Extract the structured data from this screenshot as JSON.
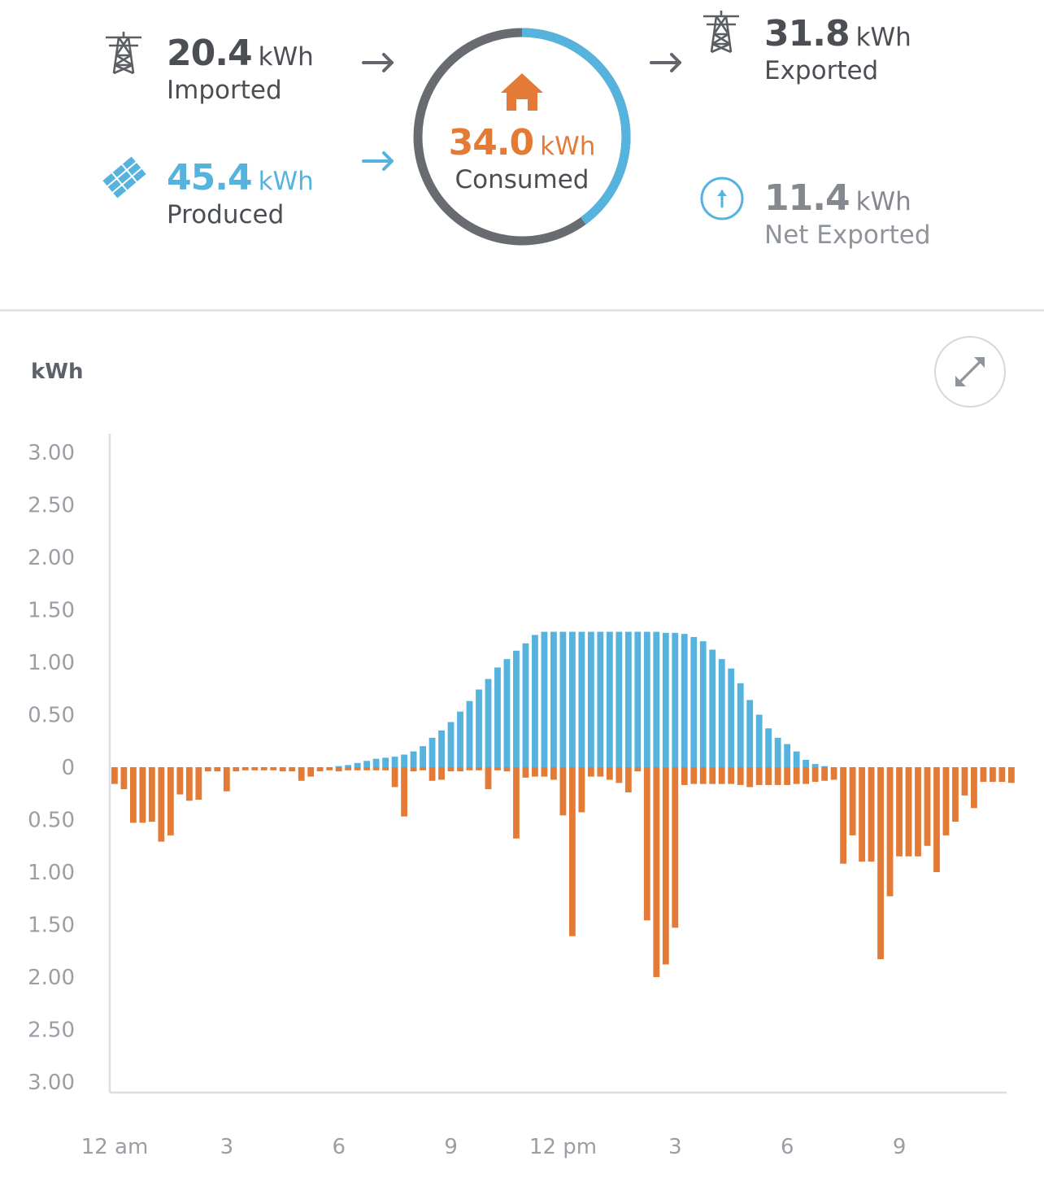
{
  "summary": {
    "imported": {
      "value": "20.4",
      "unit": "kWh",
      "label": "Imported",
      "icon": "transmission-tower-icon"
    },
    "produced": {
      "value": "45.4",
      "unit": "kWh",
      "label": "Produced",
      "icon": "solar-panel-icon"
    },
    "consumed": {
      "value": "34.0",
      "unit": "kWh",
      "label": "Consumed",
      "icon": "home-icon",
      "solar_share": 0.4
    },
    "exported": {
      "value": "31.8",
      "unit": "kWh",
      "label": "Exported",
      "icon": "transmission-tower-icon"
    },
    "net_exported": {
      "value": "11.4",
      "unit": "kWh",
      "label": "Net Exported",
      "icon": "arrow-up-circle-icon"
    }
  },
  "colors": {
    "solar": "#55b3de",
    "consumption": "#e37b36",
    "grid": "#6a6d73",
    "muted": "#8f939a"
  },
  "chart_data": {
    "type": "bar",
    "ylabel": "kWh",
    "ylim": [
      -3,
      3
    ],
    "y_tick_labels": [
      "3.00",
      "2.50",
      "2.00",
      "1.50",
      "1.00",
      "0.50",
      "0",
      "0.50",
      "1.00",
      "1.50",
      "2.00",
      "2.50",
      "3.00"
    ],
    "x_tick_labels": [
      "12 am",
      "3",
      "6",
      "9",
      "12 pm",
      "3",
      "6",
      "9"
    ],
    "x_tick_hours": [
      0,
      3,
      6,
      9,
      12,
      15,
      18,
      21
    ],
    "interval_hours": 0.25,
    "series": [
      {
        "values": [
          0,
          0,
          0,
          0,
          0,
          0,
          0,
          0,
          0,
          0,
          0,
          0,
          0,
          0,
          0,
          0,
          0,
          0,
          0,
          0,
          0,
          0,
          0,
          0,
          0.01,
          0.02,
          0.04,
          0.06,
          0.08,
          0.09,
          0.1,
          0.12,
          0.15,
          0.2,
          0.28,
          0.35,
          0.43,
          0.53,
          0.63,
          0.74,
          0.84,
          0.95,
          1.03,
          1.11,
          1.18,
          1.26,
          1.29,
          1.29,
          1.29,
          1.29,
          1.29,
          1.29,
          1.29,
          1.29,
          1.29,
          1.29,
          1.29,
          1.29,
          1.29,
          1.28,
          1.28,
          1.27,
          1.24,
          1.2,
          1.12,
          1.03,
          0.94,
          0.8,
          0.64,
          0.5,
          0.37,
          0.28,
          0.22,
          0.15,
          0.07,
          0.03,
          0.01,
          0,
          0,
          0,
          0,
          0,
          0,
          0,
          0,
          0,
          0,
          0,
          0,
          0,
          0,
          0,
          0,
          0,
          0,
          0
        ]
      },
      {
        "values": [
          -0.16,
          -0.21,
          -0.53,
          -0.53,
          -0.52,
          -0.71,
          -0.65,
          -0.26,
          -0.32,
          -0.31,
          -0.04,
          -0.04,
          -0.23,
          -0.04,
          -0.03,
          -0.03,
          -0.03,
          -0.03,
          -0.04,
          -0.04,
          -0.13,
          -0.09,
          -0.04,
          -0.03,
          -0.04,
          -0.03,
          -0.03,
          -0.03,
          -0.03,
          -0.03,
          -0.19,
          -0.47,
          -0.04,
          -0.03,
          -0.13,
          -0.12,
          -0.04,
          -0.04,
          -0.03,
          -0.03,
          -0.21,
          -0.03,
          -0.04,
          -0.68,
          -0.1,
          -0.09,
          -0.09,
          -0.12,
          -0.46,
          -1.61,
          -0.43,
          -0.09,
          -0.09,
          -0.12,
          -0.15,
          -0.24,
          -0.04,
          -1.46,
          -2.0,
          -1.88,
          -1.53,
          -0.17,
          -0.16,
          -0.16,
          -0.16,
          -0.16,
          -0.16,
          -0.17,
          -0.19,
          -0.17,
          -0.17,
          -0.17,
          -0.17,
          -0.16,
          -0.16,
          -0.14,
          -0.13,
          -0.12,
          -0.92,
          -0.65,
          -0.9,
          -0.9,
          -1.83,
          -1.23,
          -0.85,
          -0.85,
          -0.85,
          -0.75,
          -1.0,
          -0.65,
          -0.52,
          -0.27,
          -0.39,
          -0.14,
          -0.14,
          -0.14,
          -0.15
        ]
      }
    ]
  }
}
